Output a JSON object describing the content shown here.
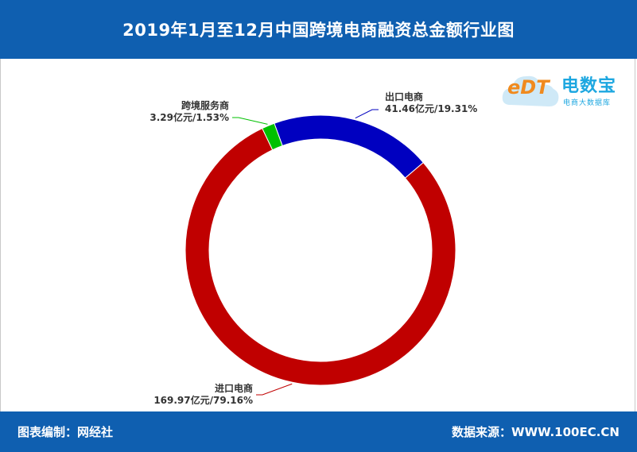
{
  "header": {
    "title": "2019年1月至12月中国跨境电商融资总金额行业图"
  },
  "logo": {
    "mark": "eDT",
    "name": "电数宝",
    "subtitle": "电商大数据库"
  },
  "footer": {
    "left": "图表编制：网经社",
    "right": "数据来源：WWW.100EC.CN"
  },
  "chart_data": {
    "type": "pie",
    "donut": true,
    "title": "2019年1月至12月中国跨境电商融资总金额行业图",
    "unit": "亿元",
    "slices": [
      {
        "name": "出口电商",
        "value": 41.46,
        "percent": 19.31,
        "label": "41.46亿元/19.31%",
        "color": "#0000c0"
      },
      {
        "name": "进口电商",
        "value": 169.97,
        "percent": 79.16,
        "label": "169.97亿元/79.16%",
        "color": "#c00000"
      },
      {
        "name": "跨境服务商",
        "value": 3.29,
        "percent": 1.53,
        "label": "3.29亿元/1.53%",
        "color": "#00c000"
      }
    ]
  }
}
